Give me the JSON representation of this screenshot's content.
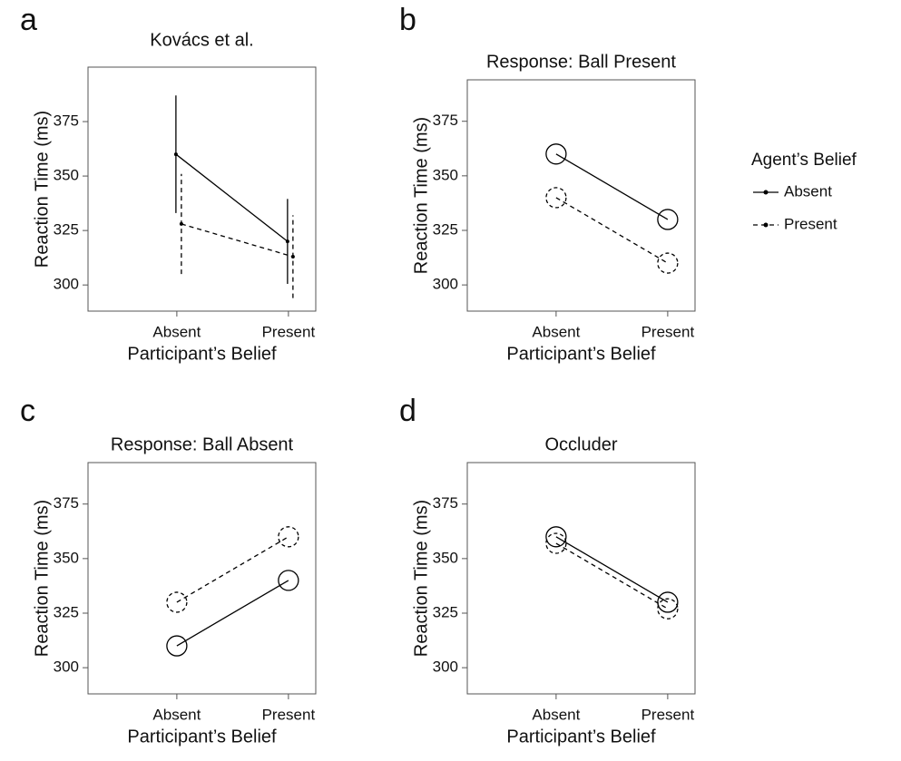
{
  "chart_data": [
    {
      "type": "line",
      "panel": "a",
      "title": "Kovács et al.",
      "xlabel": "Participant’s Belief",
      "ylabel": "Reaction Time (ms)",
      "categories": [
        "Absent",
        "Present"
      ],
      "ylim": [
        288,
        400
      ],
      "yticks": [
        300,
        325,
        350,
        375
      ],
      "series": [
        {
          "color": "#000000",
          "dashed": false,
          "marker": "dot",
          "values": [
            360,
            320
          ],
          "errors": [
            27,
            19.5
          ]
        },
        {
          "color": "#000000",
          "dashed": true,
          "marker": "dot",
          "values": [
            328,
            313
          ],
          "errors": [
            23,
            19
          ]
        }
      ]
    },
    {
      "type": "line",
      "panel": "b",
      "title": "Response: Ball Present",
      "xlabel": "Participant’s Belief",
      "ylabel": "Reaction Time (ms)",
      "categories": [
        "Absent",
        "Present"
      ],
      "ylim": [
        288,
        394
      ],
      "yticks": [
        300,
        325,
        350,
        375
      ],
      "legend_title": "Agent’s Belief",
      "series": [
        {
          "name": "Absent",
          "color": "#000000",
          "dashed": false,
          "marker": "circle-open",
          "values": [
            360,
            330
          ]
        },
        {
          "name": "Present",
          "color": "#000000",
          "dashed": true,
          "marker": "circle-open",
          "values": [
            340,
            310
          ]
        }
      ]
    },
    {
      "type": "line",
      "panel": "c",
      "title": "Response: Ball Absent",
      "xlabel": "Participant’s Belief",
      "ylabel": "Reaction Time (ms)",
      "categories": [
        "Absent",
        "Present"
      ],
      "ylim": [
        288,
        394
      ],
      "yticks": [
        300,
        325,
        350,
        375
      ],
      "series": [
        {
          "color": "#000000",
          "dashed": false,
          "marker": "circle-open",
          "values": [
            310,
            340
          ]
        },
        {
          "color": "#000000",
          "dashed": true,
          "marker": "circle-open",
          "values": [
            330,
            360
          ]
        }
      ]
    },
    {
      "type": "line",
      "panel": "d",
      "title": "Occluder",
      "xlabel": "Participant’s Belief",
      "ylabel": "Reaction Time (ms)",
      "categories": [
        "Absent",
        "Present"
      ],
      "ylim": [
        288,
        394
      ],
      "yticks": [
        300,
        325,
        350,
        375
      ],
      "series": [
        {
          "color": "#000000",
          "dashed": false,
          "marker": "circle-open",
          "values": [
            360,
            330
          ]
        },
        {
          "color": "#000000",
          "dashed": true,
          "marker": "circle-open",
          "values": [
            357,
            327
          ]
        }
      ]
    }
  ]
}
